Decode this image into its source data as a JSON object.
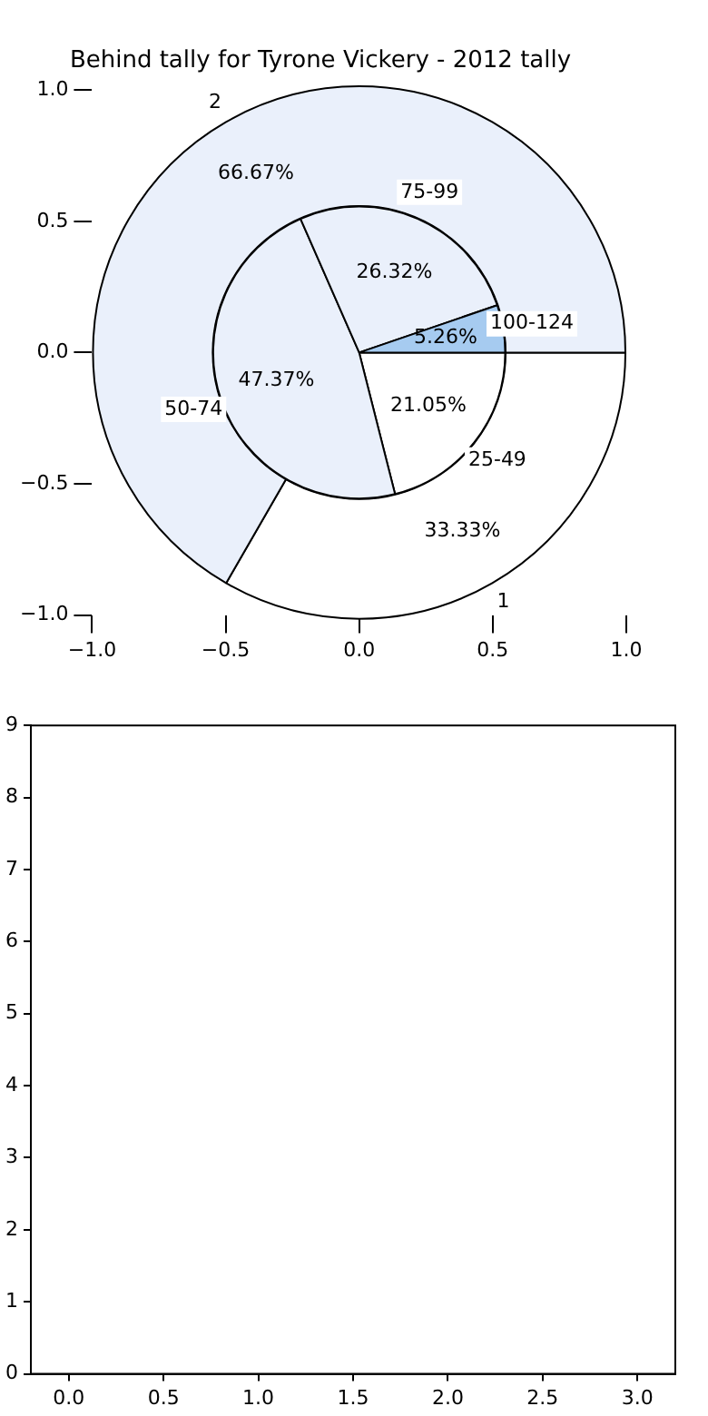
{
  "chart_data": [
    {
      "type": "scatter",
      "title": "Behind tally for Tyrone Vickery - 2012 tally",
      "xlim": [
        -1,
        1
      ],
      "ylim": [
        -1,
        1
      ],
      "xticks": [
        {
          "value": -1,
          "label": "−1.0"
        },
        {
          "value": -0.5,
          "label": "−0.5"
        },
        {
          "value": 0,
          "label": "0.0"
        },
        {
          "value": 0.5,
          "label": "0.5"
        },
        {
          "value": 1,
          "label": "1.0"
        }
      ],
      "yticks": [
        {
          "value": -1,
          "label": "−1.0"
        },
        {
          "value": -0.5,
          "label": "−0.5"
        },
        {
          "value": 0,
          "label": "0.0"
        },
        {
          "value": 0.5,
          "label": "0.5"
        },
        {
          "value": 1,
          "label": "1.0"
        }
      ],
      "grid": false
    },
    {
      "type": "donut",
      "categories": [
        "1",
        "2"
      ],
      "values": [
        33.33,
        66.67
      ],
      "colors": [
        "#ffffff",
        "#eaf0fb"
      ],
      "value_labels": [
        "33.33%",
        "66.67%"
      ]
    },
    {
      "type": "pie",
      "categories": [
        "25-49",
        "50-74",
        "75-99",
        "100-124"
      ],
      "values": [
        21.05,
        47.37,
        26.32,
        5.26
      ],
      "colors": [
        "#ffffff",
        "#eaf0fb",
        "#eaf0fb",
        "#a6cbf0"
      ],
      "value_labels": [
        "21.05%",
        "47.37%",
        "26.32%",
        "5.26%"
      ]
    },
    {
      "type": "scatter",
      "xlim": [
        -0.2,
        3.2
      ],
      "ylim": [
        0,
        9
      ],
      "xticks": [
        {
          "value": 0,
          "label": "0.0"
        },
        {
          "value": 0.5,
          "label": "0.5"
        },
        {
          "value": 1,
          "label": "1.0"
        },
        {
          "value": 1.5,
          "label": "1.5"
        },
        {
          "value": 2,
          "label": "2.0"
        },
        {
          "value": 2.5,
          "label": "2.5"
        },
        {
          "value": 3,
          "label": "3.0"
        }
      ],
      "yticks": [
        0,
        1,
        2,
        3,
        4,
        5,
        6,
        7,
        8,
        9
      ],
      "grid": false
    }
  ]
}
